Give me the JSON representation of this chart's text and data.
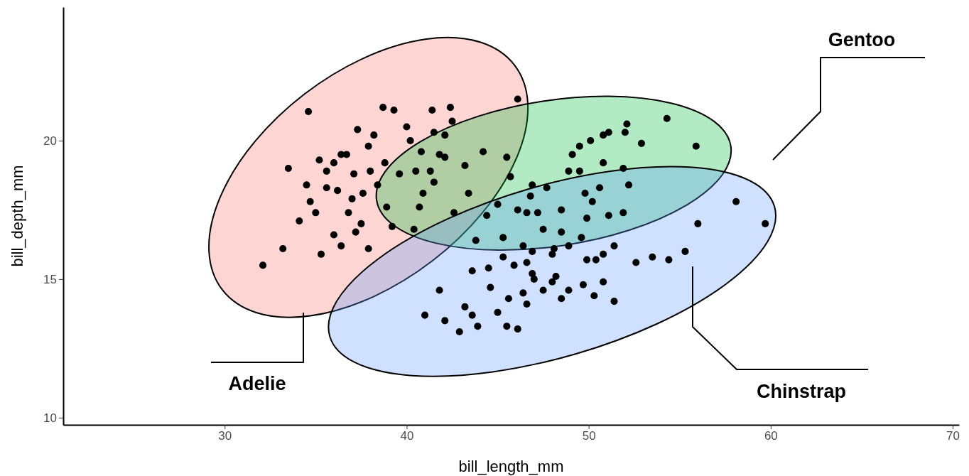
{
  "chart_data": {
    "type": "scatter",
    "xlabel": "bill_length_mm",
    "ylabel": "bill_depth_mm",
    "xlim": [
      21.13,
      70.35
    ],
    "ylim": [
      9.74,
      24.82
    ],
    "xticks": [
      30,
      40,
      50,
      60,
      70
    ],
    "yticks": [
      10,
      15,
      20
    ],
    "marker": "circle",
    "annotations": [
      "Adelie",
      "Gentoo",
      "Chinstrap"
    ],
    "series": [
      {
        "color": "#000000",
        "x": [
          32.1,
          33.2,
          33.5,
          34.6,
          34.5,
          34.1,
          34.7,
          35.2,
          35.6,
          35.3,
          36.0,
          36.4,
          36.2,
          36.8,
          36.0,
          37.1,
          37.3,
          37.6,
          37.9,
          37.5,
          37.9,
          38.2,
          38.7,
          39.3,
          38.8,
          38.4,
          38.9,
          39.2,
          39.6,
          40.0,
          40.2,
          40.5,
          40.9,
          41.4,
          41.5,
          42.1,
          42.4,
          42.5,
          41.8,
          40.4,
          40.7,
          46.1,
          36.7,
          37.0,
          38.0,
          35.0,
          36.4,
          35.6,
          37.2
        ],
        "values": [
          15.5,
          16.1,
          19.0,
          21.05,
          18.4,
          17.1,
          17.8,
          19.3,
          18.9,
          15.9,
          19.2,
          19.5,
          18.2,
          17.4,
          16.6,
          18.8,
          20.4,
          18.1,
          19.8,
          17.0,
          16.1,
          20.2,
          21.2,
          21.1,
          19.2,
          18.4,
          17.6,
          16.9,
          18.8,
          20.5,
          20.0,
          18.9,
          18.1,
          21.1,
          20.3,
          20.2,
          21.2,
          20.7,
          19.5,
          16.8,
          17.6,
          21.5,
          19.5,
          17.9,
          18.9,
          17.4,
          16.2,
          18.3,
          16.7
        ]
      },
      {
        "color": "#000000",
        "x": [
          40.8,
          41.3,
          41.5,
          42.1,
          43.2,
          44.2,
          45.7,
          45.5,
          46.8,
          47.7,
          49.1,
          49.5,
          50.1,
          50.8,
          51.1,
          52.1,
          52.0,
          52.9,
          54.3,
          55.9,
          48.9,
          49.5,
          50.8,
          51.9,
          52.2,
          50.6,
          49.8,
          48.5,
          51.9,
          43.4,
          42.6,
          44.4,
          46.1,
          46.9,
          50.2,
          51.1,
          46.6,
          45.0
        ],
        "values": [
          19.6,
          18.9,
          18.5,
          19.4,
          19.1,
          19.6,
          18.7,
          19.4,
          18.0,
          18.3,
          19.5,
          19.8,
          20.0,
          20.2,
          20.3,
          20.6,
          20.3,
          19.9,
          20.8,
          19.8,
          18.9,
          18.9,
          19.2,
          19.0,
          18.4,
          18.3,
          18.1,
          17.5,
          17.4,
          18.1,
          17.4,
          17.3,
          17.5,
          18.4,
          17.8,
          17.3,
          17.4,
          17.7
        ]
      },
      {
        "color": "#000000",
        "x": [
          41.0,
          41.8,
          42.1,
          42.9,
          43.2,
          43.6,
          43.9,
          44.6,
          45.0,
          45.5,
          46.1,
          45.6,
          46.4,
          46.6,
          47.0,
          47.5,
          48.0,
          48.5,
          48.9,
          49.7,
          50.3,
          51.4,
          50.8,
          45.3,
          45.3,
          46.4,
          46.6,
          47.5,
          48.1,
          48.9,
          49.6,
          49.9,
          50.8,
          51.4,
          52.6,
          53.5,
          54.4,
          55.3,
          56.0,
          58.1,
          59.7,
          43.6,
          44.5,
          46.9,
          48.2,
          50.4,
          48.5,
          43.8,
          45.9,
          46.9,
          49.9,
          47.2,
          48.0
        ],
        "values": [
          13.7,
          14.6,
          13.5,
          13.1,
          14.0,
          13.7,
          13.3,
          14.7,
          13.8,
          13.3,
          13.2,
          14.3,
          14.5,
          14.1,
          15.0,
          14.6,
          14.9,
          14.3,
          14.6,
          14.8,
          14.4,
          14.2,
          14.9,
          16.5,
          15.8,
          16.2,
          15.6,
          16.8,
          16.1,
          16.2,
          16.5,
          15.7,
          15.9,
          16.2,
          15.6,
          15.8,
          15.7,
          16.0,
          17.0,
          17.8,
          17.0,
          15.3,
          15.4,
          15.2,
          15.1,
          15.7,
          16.7,
          16.4,
          15.5,
          16.0,
          17.2,
          17.4,
          15.9
        ]
      }
    ]
  }
}
